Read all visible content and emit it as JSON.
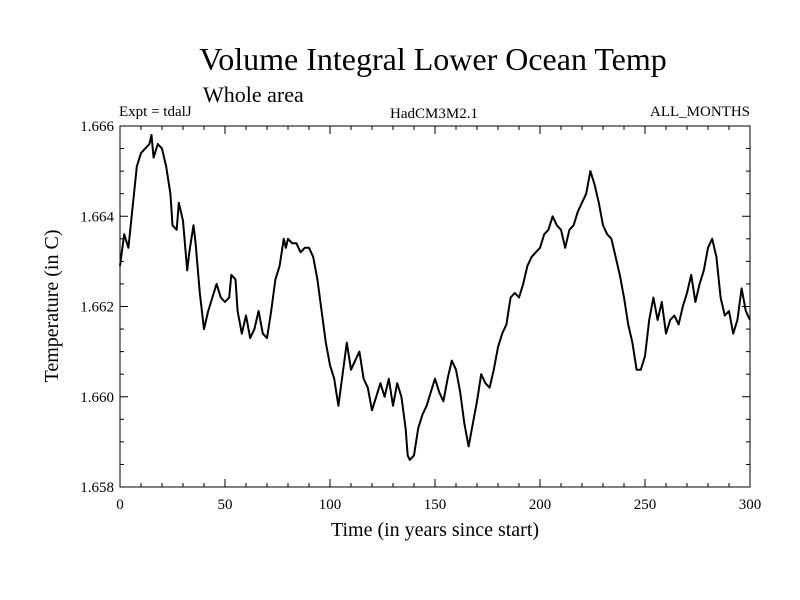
{
  "chart_data": {
    "type": "line",
    "title": "Volume Integral Lower Ocean Temp",
    "subtitle": "Whole area",
    "experiment_label": "Expt = tdalJ",
    "model_label": "HadCM3M2.1",
    "months_label": "ALL_MONTHS",
    "xlabel": "Time (in years since start)",
    "ylabel": "Temperature (in C)",
    "xlim": [
      0,
      300
    ],
    "ylim": [
      1.658,
      1.666
    ],
    "xticks": [
      0,
      50,
      100,
      150,
      200,
      250,
      300
    ],
    "xtick_labels": [
      "0",
      "50",
      "100",
      "150",
      "200",
      "250",
      "300"
    ],
    "yticks": [
      1.658,
      1.66,
      1.662,
      1.664,
      1.666
    ],
    "ytick_labels": [
      "1.658",
      "1.660",
      "1.662",
      "1.664",
      "1.666"
    ],
    "series": [
      {
        "name": "Volume Integral Lower Ocean Temp",
        "color": "#000000",
        "points": [
          [
            0,
            1.6629
          ],
          [
            2,
            1.6636
          ],
          [
            4,
            1.6633
          ],
          [
            6,
            1.6642
          ],
          [
            8,
            1.6651
          ],
          [
            10,
            1.6654
          ],
          [
            12,
            1.6655
          ],
          [
            14,
            1.6656
          ],
          [
            15,
            1.6658
          ],
          [
            16,
            1.6653
          ],
          [
            18,
            1.6656
          ],
          [
            20,
            1.6655
          ],
          [
            22,
            1.6651
          ],
          [
            24,
            1.6645
          ],
          [
            25,
            1.6638
          ],
          [
            27,
            1.6637
          ],
          [
            28,
            1.6643
          ],
          [
            30,
            1.6639
          ],
          [
            32,
            1.6628
          ],
          [
            33,
            1.6632
          ],
          [
            35,
            1.6638
          ],
          [
            36,
            1.6634
          ],
          [
            38,
            1.6623
          ],
          [
            40,
            1.6615
          ],
          [
            42,
            1.6619
          ],
          [
            44,
            1.6622
          ],
          [
            46,
            1.6625
          ],
          [
            48,
            1.6622
          ],
          [
            50,
            1.6621
          ],
          [
            52,
            1.6622
          ],
          [
            53,
            1.6627
          ],
          [
            55,
            1.6626
          ],
          [
            56,
            1.6619
          ],
          [
            58,
            1.6614
          ],
          [
            60,
            1.6618
          ],
          [
            62,
            1.6613
          ],
          [
            64,
            1.6615
          ],
          [
            66,
            1.6619
          ],
          [
            68,
            1.6614
          ],
          [
            70,
            1.6613
          ],
          [
            72,
            1.6619
          ],
          [
            74,
            1.6626
          ],
          [
            76,
            1.6629
          ],
          [
            78,
            1.6635
          ],
          [
            79,
            1.6633
          ],
          [
            80,
            1.6635
          ],
          [
            82,
            1.6634
          ],
          [
            84,
            1.6634
          ],
          [
            86,
            1.6632
          ],
          [
            88,
            1.6633
          ],
          [
            90,
            1.6633
          ],
          [
            92,
            1.6631
          ],
          [
            94,
            1.6626
          ],
          [
            96,
            1.6619
          ],
          [
            98,
            1.6612
          ],
          [
            100,
            1.6607
          ],
          [
            102,
            1.6604
          ],
          [
            104,
            1.6598
          ],
          [
            106,
            1.6605
          ],
          [
            108,
            1.6612
          ],
          [
            110,
            1.6606
          ],
          [
            112,
            1.6608
          ],
          [
            114,
            1.661
          ],
          [
            116,
            1.6604
          ],
          [
            118,
            1.6602
          ],
          [
            120,
            1.6597
          ],
          [
            122,
            1.66
          ],
          [
            124,
            1.6603
          ],
          [
            126,
            1.66
          ],
          [
            128,
            1.6604
          ],
          [
            130,
            1.6598
          ],
          [
            132,
            1.6603
          ],
          [
            134,
            1.66
          ],
          [
            136,
            1.6593
          ],
          [
            137,
            1.6587
          ],
          [
            138,
            1.6586
          ],
          [
            140,
            1.6587
          ],
          [
            142,
            1.6593
          ],
          [
            144,
            1.6596
          ],
          [
            146,
            1.6598
          ],
          [
            148,
            1.6601
          ],
          [
            150,
            1.6604
          ],
          [
            152,
            1.6601
          ],
          [
            154,
            1.6599
          ],
          [
            156,
            1.6604
          ],
          [
            158,
            1.6608
          ],
          [
            160,
            1.6606
          ],
          [
            162,
            1.6601
          ],
          [
            164,
            1.6594
          ],
          [
            166,
            1.6589
          ],
          [
            168,
            1.6594
          ],
          [
            170,
            1.6599
          ],
          [
            172,
            1.6605
          ],
          [
            174,
            1.6603
          ],
          [
            176,
            1.6602
          ],
          [
            178,
            1.6606
          ],
          [
            180,
            1.6611
          ],
          [
            182,
            1.6614
          ],
          [
            184,
            1.6616
          ],
          [
            186,
            1.6622
          ],
          [
            188,
            1.6623
          ],
          [
            190,
            1.6622
          ],
          [
            192,
            1.6625
          ],
          [
            194,
            1.6629
          ],
          [
            196,
            1.6631
          ],
          [
            198,
            1.6632
          ],
          [
            200,
            1.6633
          ],
          [
            202,
            1.6636
          ],
          [
            204,
            1.6637
          ],
          [
            206,
            1.664
          ],
          [
            208,
            1.6638
          ],
          [
            210,
            1.6637
          ],
          [
            212,
            1.6633
          ],
          [
            214,
            1.6637
          ],
          [
            216,
            1.6638
          ],
          [
            218,
            1.6641
          ],
          [
            220,
            1.6643
          ],
          [
            222,
            1.6645
          ],
          [
            224,
            1.665
          ],
          [
            226,
            1.6647
          ],
          [
            228,
            1.6643
          ],
          [
            230,
            1.6638
          ],
          [
            232,
            1.6636
          ],
          [
            234,
            1.6635
          ],
          [
            236,
            1.6631
          ],
          [
            238,
            1.6627
          ],
          [
            240,
            1.6622
          ],
          [
            242,
            1.6616
          ],
          [
            244,
            1.6612
          ],
          [
            246,
            1.6606
          ],
          [
            248,
            1.6606
          ],
          [
            250,
            1.6609
          ],
          [
            252,
            1.6617
          ],
          [
            254,
            1.6622
          ],
          [
            256,
            1.6617
          ],
          [
            258,
            1.6621
          ],
          [
            260,
            1.6614
          ],
          [
            262,
            1.6617
          ],
          [
            264,
            1.6618
          ],
          [
            266,
            1.6616
          ],
          [
            268,
            1.662
          ],
          [
            270,
            1.6623
          ],
          [
            272,
            1.6627
          ],
          [
            274,
            1.6621
          ],
          [
            276,
            1.6625
          ],
          [
            278,
            1.6628
          ],
          [
            280,
            1.6633
          ],
          [
            282,
            1.6635
          ],
          [
            284,
            1.6631
          ],
          [
            286,
            1.6622
          ],
          [
            288,
            1.6618
          ],
          [
            290,
            1.6619
          ],
          [
            292,
            1.6614
          ],
          [
            294,
            1.6617
          ],
          [
            296,
            1.6624
          ],
          [
            298,
            1.6619
          ],
          [
            300,
            1.6617
          ]
        ]
      }
    ]
  }
}
